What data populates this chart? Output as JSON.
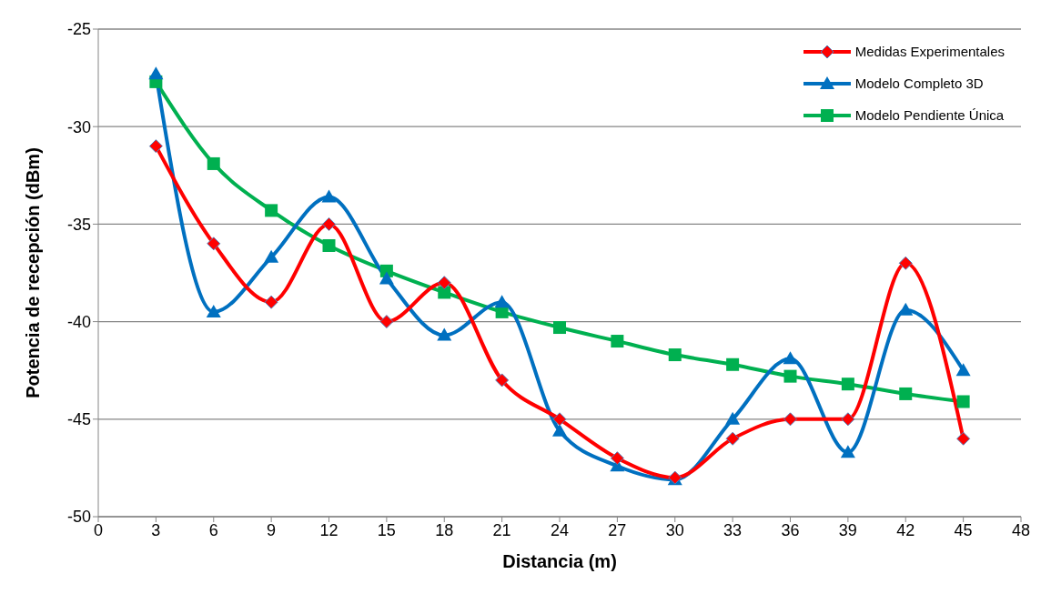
{
  "chart_data": {
    "type": "line",
    "xlabel": "Distancia (m)",
    "ylabel": "Potencia de recepción (dBm)",
    "x": [
      3,
      6,
      9,
      12,
      15,
      18,
      21,
      24,
      27,
      30,
      33,
      36,
      39,
      42,
      45
    ],
    "xlim": [
      0,
      48
    ],
    "xticks": [
      0,
      3,
      6,
      9,
      12,
      15,
      18,
      21,
      24,
      27,
      30,
      33,
      36,
      39,
      42,
      45,
      48
    ],
    "ylim": [
      -50,
      -25
    ],
    "yticks": [
      -50,
      -45,
      -40,
      -35,
      -30,
      -25
    ],
    "grid": "y",
    "legend": "top right",
    "line_style": "solid",
    "series": [
      {
        "name": "Medidas Experimentales",
        "color": "#ff0000",
        "marker": "diamond",
        "values": [
          -31,
          -36,
          -39,
          -35,
          -40,
          -38,
          -43,
          -45,
          -47,
          -48,
          -46,
          -45,
          -45,
          -37,
          -46
        ]
      },
      {
        "name": "Modelo Completo 3D",
        "color": "#0070c0",
        "marker": "triangle",
        "values": [
          -27.3,
          -39.5,
          -36.7,
          -33.6,
          -37.8,
          -40.7,
          -39.0,
          -45.6,
          -47.4,
          -48.1,
          -45.0,
          -41.9,
          -46.7,
          -39.4,
          -42.5
        ]
      },
      {
        "name": "Modelo Pendiente Única",
        "color": "#00b050",
        "marker": "square",
        "values": [
          -27.7,
          -31.9,
          -34.3,
          -36.1,
          -37.4,
          -38.5,
          -39.5,
          -40.3,
          -41.0,
          -41.7,
          -42.2,
          -42.8,
          -43.2,
          -43.7,
          -44.1
        ]
      }
    ]
  }
}
